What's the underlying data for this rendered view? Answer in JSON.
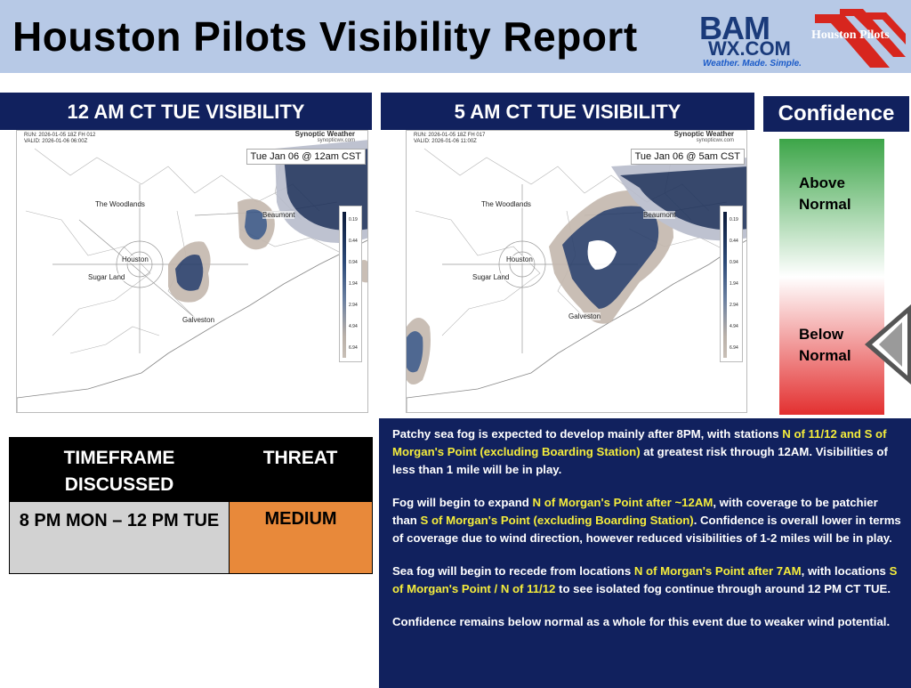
{
  "header": {
    "title": "Houston Pilots Visibility Report",
    "bam_logo": {
      "top": "BAM",
      "bottom": "WX.COM",
      "tagline": "Weather. Made. Simple."
    },
    "pilots_logo": {
      "text": "Houston Pilots"
    }
  },
  "maps": [
    {
      "panel_title": "12 AM CT TUE VISIBILITY",
      "run_line": "RUN: 2026-01-05 18Z FH 012",
      "valid_line": "VALID: 2026-01-06 06:00Z",
      "brand": "Synoptic Weather",
      "brand_url": "synopticwx.com",
      "time_label": "Tue Jan 06 @ 12am CST",
      "cities": [
        "The Woodlands",
        "Beaumont",
        "Houston",
        "Sugar Land",
        "Galveston"
      ]
    },
    {
      "panel_title": "5 AM CT TUE VISIBILITY",
      "run_line": "RUN: 2026-01-05 18Z FH 017",
      "valid_line": "VALID: 2026-01-06 11:00Z",
      "brand": "Synoptic Weather",
      "brand_url": "synopticwx.com",
      "time_label": "Tue Jan 06 @ 5am CST",
      "cities": [
        "The Woodlands",
        "Beaumont",
        "Houston",
        "Sugar Land",
        "Galveston"
      ]
    }
  ],
  "legend": {
    "ticks": [
      "0.19",
      "0.44",
      "0.94",
      "1.94",
      "2.94",
      "4.94",
      "6.94"
    ]
  },
  "confidence": {
    "title": "Confidence",
    "above_label": "Above Normal",
    "below_label": "Below Normal",
    "level": "below-normal",
    "colors": {
      "top": "#3ca548",
      "bottom": "#e33030"
    }
  },
  "threat_table": {
    "header_timeframe": "TIMEFRAME DISCUSSED",
    "header_threat": "THREAT",
    "timeframe": "8 PM MON – 12 PM TUE",
    "threat": "MEDIUM",
    "threat_color": "#e8893a"
  },
  "discussion": {
    "p1": [
      "Patchy sea fog is expected to develop mainly after 8PM, with stations ",
      "N of 11/12 and S of Morgan's Point (excluding Boarding Station)",
      " at greatest risk through 12AM. Visibilities of less than 1 mile will be in play."
    ],
    "p2": [
      "Fog will begin to expand ",
      "N of Morgan's Point after ~12AM",
      ", with coverage to be patchier than ",
      "S of Morgan's Point (excluding Boarding Station)",
      ". Confidence is overall lower in terms of coverage due to wind direction, however reduced visibilities of 1-2 miles will be in play."
    ],
    "p3": [
      "Sea fog will begin to recede from locations ",
      "N of Morgan's Point after 7AM",
      ", with locations ",
      "S of Morgan's Point / N of 11/12",
      " to see isolated fog continue through around 12 PM CT TUE."
    ],
    "p4": [
      "Confidence remains below normal as a whole for this event due to weaker wind potential."
    ]
  }
}
